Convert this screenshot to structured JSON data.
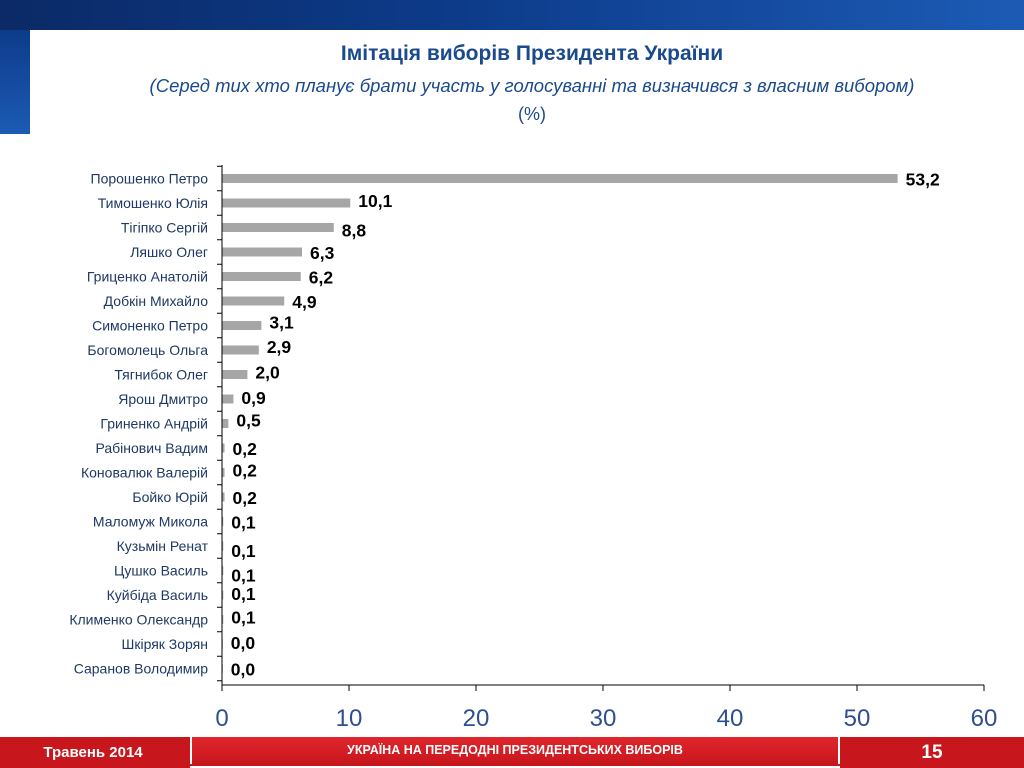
{
  "slide": {
    "title": "Імітація виборів Президента України",
    "subtitle": "(Серед тих хто планує брати участь у голосуванні та визначився з власним вибором)",
    "unit": "(%)"
  },
  "footer": {
    "date": "Травень 2014",
    "banner": "УКРАЇНА НА ПЕРЕДОДНІ ПРЕЗИДЕНТСЬКИХ ВИБОРІВ",
    "page_number": "15"
  },
  "colors": {
    "bar": "#a6a6a6",
    "title": "#1a4a8c",
    "axis_tick_labels": "#2e4f8f",
    "footer": "#c8161d"
  },
  "chart_data": {
    "type": "bar",
    "orientation": "horizontal",
    "categories": [
      "Порошенко Петро",
      "Тимошенко Юлія",
      "Тігіпко Сергій",
      "Ляшко Олег",
      "Гриценко Анатолій",
      "Добкін Михайло",
      "Симоненко Петро",
      "Богомолець Ольга",
      "Тягнибок Олег",
      "Ярош Дмитро",
      "Гриненко Андрій",
      "Рабінович Вадим",
      "Коновалюк Валерій",
      "Бойко Юрій",
      "Маломуж Микола",
      "Кузьмін Ренат",
      "Цушко Василь",
      "Куйбіда Василь",
      "Клименко Олександр",
      "Шкіряк Зорян",
      "Саранов Володимир"
    ],
    "values": [
      53.2,
      10.1,
      8.8,
      6.3,
      6.2,
      4.9,
      3.1,
      2.9,
      2.0,
      0.9,
      0.5,
      0.2,
      0.2,
      0.2,
      0.1,
      0.1,
      0.1,
      0.1,
      0.1,
      0.0,
      0.0
    ],
    "value_labels": [
      "53,2",
      "10,1",
      "8,8",
      "6,3",
      "6,2",
      "4,9",
      "3,1",
      "2,9",
      "2,0",
      "0,9",
      "0,5",
      "0,2",
      "0,2",
      "0,2",
      "0,1",
      "0,1",
      "0,1",
      "0,1",
      "0,1",
      "0,0",
      "0,0"
    ],
    "x_ticks": [
      0,
      10,
      20,
      30,
      40,
      50,
      60
    ],
    "xlim": [
      0,
      60
    ],
    "grid": false,
    "legend": "none"
  }
}
